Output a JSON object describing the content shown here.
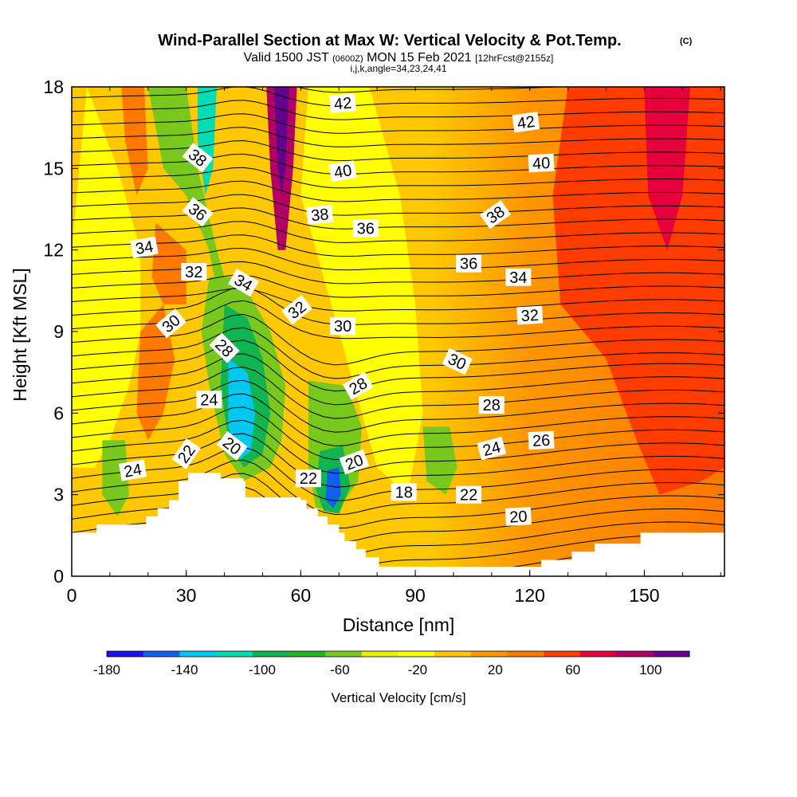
{
  "chart_data": {
    "type": "heatmap",
    "title": "Wind-Parallel Section at Max W: Vertical Velocity & Pot.Temp.",
    "title_mark": "(C)",
    "subtitle_parts": [
      "Valid 1500 JST ",
      "(0600Z)",
      " MON 15 Feb 2021 ",
      "[12hrFcst@2155z]"
    ],
    "subtitle2": "i,j,k,angle=34,23,24,41",
    "xlabel": "Distance [nm]",
    "ylabel": "Height [Kft MSL]",
    "xlim": [
      0,
      171
    ],
    "ylim": [
      0,
      18
    ],
    "x_ticks": [
      0,
      30,
      60,
      90,
      120,
      150
    ],
    "y_ticks": [
      0,
      3,
      6,
      9,
      12,
      15,
      18
    ],
    "colorbar": {
      "label": "Vertical Velocity [cm/s]",
      "tick_labels": [
        "-180",
        "-140",
        "-100",
        "-60",
        "-20",
        "20",
        "60",
        "100"
      ],
      "tick_values": [
        -180,
        -140,
        -100,
        -60,
        -20,
        20,
        60,
        100
      ],
      "bins": [
        -180,
        -160,
        -140,
        -120,
        -100,
        -80,
        -60,
        -40,
        -20,
        0,
        20,
        40,
        60,
        80,
        100,
        120
      ],
      "colors": [
        "#1a10f0",
        "#1060f0",
        "#00c8f0",
        "#00dcb4",
        "#10b450",
        "#28b428",
        "#78c81e",
        "#e6f000",
        "#ffff00",
        "#ffc800",
        "#ff9600",
        "#ff7800",
        "#ff3c00",
        "#e6003c",
        "#b40064",
        "#64008c"
      ]
    },
    "contour_field": "Potential Temperature (C)",
    "contour_labels": [
      {
        "text": "42",
        "x": 71,
        "y": 17.4,
        "angle": -5
      },
      {
        "text": "42",
        "x": 119,
        "y": 16.7,
        "angle": -8
      },
      {
        "text": "38",
        "x": 33,
        "y": 15.4,
        "angle": 38
      },
      {
        "text": "40",
        "x": 71,
        "y": 14.9,
        "angle": -10
      },
      {
        "text": "40",
        "x": 123,
        "y": 15.2,
        "angle": -3
      },
      {
        "text": "36",
        "x": 33,
        "y": 13.4,
        "angle": 38
      },
      {
        "text": "38",
        "x": 65,
        "y": 13.3,
        "angle": -5
      },
      {
        "text": "36",
        "x": 77,
        "y": 12.8,
        "angle": 0
      },
      {
        "text": "38",
        "x": 111,
        "y": 13.3,
        "angle": -35
      },
      {
        "text": "34",
        "x": 19,
        "y": 12.1,
        "angle": -10
      },
      {
        "text": "32",
        "x": 32,
        "y": 11.2,
        "angle": 0
      },
      {
        "text": "34",
        "x": 45,
        "y": 10.8,
        "angle": 30
      },
      {
        "text": "36",
        "x": 104,
        "y": 11.5,
        "angle": 0
      },
      {
        "text": "34",
        "x": 117,
        "y": 11.0,
        "angle": 0
      },
      {
        "text": "32",
        "x": 59,
        "y": 9.8,
        "angle": -38
      },
      {
        "text": "30",
        "x": 26,
        "y": 9.3,
        "angle": -40
      },
      {
        "text": "30",
        "x": 71,
        "y": 9.2,
        "angle": 0
      },
      {
        "text": "32",
        "x": 120,
        "y": 9.6,
        "angle": -3
      },
      {
        "text": "28",
        "x": 40,
        "y": 8.4,
        "angle": 45
      },
      {
        "text": "30",
        "x": 101,
        "y": 7.9,
        "angle": 25
      },
      {
        "text": "28",
        "x": 75,
        "y": 7.0,
        "angle": -30
      },
      {
        "text": "24",
        "x": 36,
        "y": 6.5,
        "angle": 0
      },
      {
        "text": "28",
        "x": 110,
        "y": 6.3,
        "angle": 0
      },
      {
        "text": "26",
        "x": 123,
        "y": 5.0,
        "angle": -3
      },
      {
        "text": "20",
        "x": 42,
        "y": 4.8,
        "angle": 38
      },
      {
        "text": "22",
        "x": 30,
        "y": 4.5,
        "angle": -55
      },
      {
        "text": "24",
        "x": 110,
        "y": 4.7,
        "angle": -15
      },
      {
        "text": "20",
        "x": 74,
        "y": 4.2,
        "angle": -20
      },
      {
        "text": "24",
        "x": 16,
        "y": 3.9,
        "angle": -10
      },
      {
        "text": "22",
        "x": 62,
        "y": 3.6,
        "angle": 0
      },
      {
        "text": "18",
        "x": 87,
        "y": 3.1,
        "angle": 0
      },
      {
        "text": "22",
        "x": 104,
        "y": 3.0,
        "angle": 0
      },
      {
        "text": "20",
        "x": 117,
        "y": 2.2,
        "angle": -3
      }
    ],
    "terrain_profile": [
      [
        0,
        1.6
      ],
      [
        6.5,
        1.6
      ],
      [
        6.5,
        1.9
      ],
      [
        19.5,
        1.9
      ],
      [
        19.5,
        2.2
      ],
      [
        22.5,
        2.2
      ],
      [
        22.5,
        2.5
      ],
      [
        25.5,
        2.5
      ],
      [
        25.5,
        2.8
      ],
      [
        28,
        2.8
      ],
      [
        28,
        3.5
      ],
      [
        30.5,
        3.5
      ],
      [
        30.5,
        3.8
      ],
      [
        39,
        3.8
      ],
      [
        39,
        3.6
      ],
      [
        45,
        3.6
      ],
      [
        45,
        3.5
      ],
      [
        45.5,
        3.5
      ],
      [
        45.5,
        2.9
      ],
      [
        60,
        2.9
      ],
      [
        60,
        2.8
      ],
      [
        61.5,
        2.8
      ],
      [
        61.5,
        2.5
      ],
      [
        64.5,
        2.5
      ],
      [
        64.5,
        2.2
      ],
      [
        67,
        2.2
      ],
      [
        67,
        1.9
      ],
      [
        70,
        1.9
      ],
      [
        70,
        1.6
      ],
      [
        71.5,
        1.6
      ],
      [
        71.5,
        1.3
      ],
      [
        74.5,
        1.3
      ],
      [
        74.5,
        1.0
      ],
      [
        77,
        1.0
      ],
      [
        77,
        0.7
      ],
      [
        80.5,
        0.7
      ],
      [
        80.5,
        0.35
      ],
      [
        82,
        0.35
      ],
      [
        82,
        0.35
      ],
      [
        123,
        0.35
      ],
      [
        123,
        0.35
      ],
      [
        123,
        0.6
      ],
      [
        131,
        0.6
      ],
      [
        131,
        0.9
      ],
      [
        137,
        0.9
      ],
      [
        137,
        1.2
      ],
      [
        149,
        1.2
      ],
      [
        149,
        1.6
      ],
      [
        171,
        1.6
      ]
    ]
  }
}
